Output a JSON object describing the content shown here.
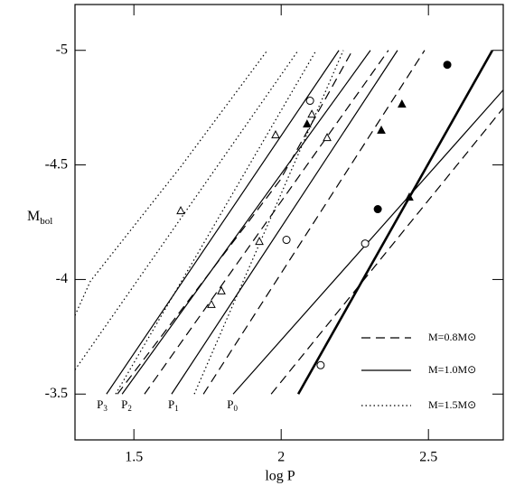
{
  "chart_data": {
    "type": "line",
    "xlabel": "log P",
    "ylabel": "M",
    "ylabel_sub": "bol",
    "xlim": [
      1.3,
      2.754
    ],
    "ylim": [
      -3.3,
      -5.2
    ],
    "xticks": [
      1.5,
      2,
      2.5
    ],
    "yticks": [
      -3.5,
      -4,
      -4.5,
      -5
    ],
    "legend": "lower right",
    "color": "#000000",
    "series": [
      {
        "name": "M=0.8M⊙",
        "dash": "10,6",
        "lines": [
          {
            "x": [
              1.444,
              1.996,
              2.242
            ],
            "y": [
              -3.5,
              -4.433,
              -5
            ]
          },
          {
            "x": [
              1.536,
              2.364
            ],
            "y": [
              -3.5,
              -5
            ]
          },
          {
            "x": [
              1.736,
              2.487
            ],
            "y": [
              -3.5,
              -5
            ]
          },
          {
            "x": [
              1.966,
              2.754
            ],
            "y": [
              -3.5,
              -4.748
            ]
          }
        ]
      },
      {
        "name": "M=1.0M⊙",
        "dash": "",
        "lines": [
          {
            "x": [
              1.407,
              2.196
            ],
            "y": [
              -3.5,
              -5
            ]
          },
          {
            "x": [
              1.46,
              2.303
            ],
            "y": [
              -3.5,
              -5
            ]
          },
          {
            "x": [
              1.628,
              2.395
            ],
            "y": [
              -3.5,
              -5
            ]
          },
          {
            "x": [
              1.837,
              2.754
            ],
            "y": [
              -3.5,
              -4.827
            ]
          }
        ]
      },
      {
        "name": "M=1.5M⊙",
        "dash": "1.5,3",
        "lines": [
          {
            "x": [
              1.3,
              1.352,
              1.659,
              1.953
            ],
            "y": [
              -3.843,
              -3.992,
              -4.492,
              -5
            ]
          },
          {
            "x": [
              1.3,
              2.058
            ],
            "y": [
              -3.606,
              -5
            ]
          },
          {
            "x": [
              1.438,
              2.119
            ],
            "y": [
              -3.5,
              -5
            ]
          },
          {
            "x": [
              1.705,
              2.211
            ],
            "y": [
              -3.5,
              -5
            ]
          }
        ]
      }
    ],
    "boundary": {
      "x": [
        2.058,
        2.717
      ],
      "y": [
        -3.5,
        -5
      ]
    },
    "points": [
      {
        "marker": "triangle",
        "filled": false,
        "x": [
          1.659,
          1.981,
          2.156,
          1.926,
          1.797,
          1.763,
          2.104
        ],
        "y": [
          -4.299,
          -4.63,
          -4.618,
          -4.165,
          -3.949,
          -3.89,
          -4.72
        ]
      },
      {
        "marker": "triangle",
        "filled": true,
        "x": [
          2.088,
          2.34,
          2.41,
          2.435
        ],
        "y": [
          -4.677,
          -4.65,
          -4.764,
          -4.358
        ]
      },
      {
        "marker": "circle",
        "filled": false,
        "x": [
          2.098,
          2.018,
          2.285,
          2.134
        ],
        "y": [
          -4.78,
          -4.173,
          -4.157,
          -3.626
        ]
      },
      {
        "marker": "circle",
        "filled": true,
        "x": [
          2.564,
          2.328
        ],
        "y": [
          -4.937,
          -4.307
        ]
      }
    ],
    "annotations": [
      {
        "text": "P",
        "sub": "3",
        "x": 1.392,
        "y": -3.449
      },
      {
        "text": "P",
        "sub": "2",
        "x": 1.475,
        "y": -3.449
      },
      {
        "text": "P",
        "sub": "1",
        "x": 1.634,
        "y": -3.449
      },
      {
        "text": "P",
        "sub": "0",
        "x": 1.834,
        "y": -3.449
      }
    ]
  }
}
